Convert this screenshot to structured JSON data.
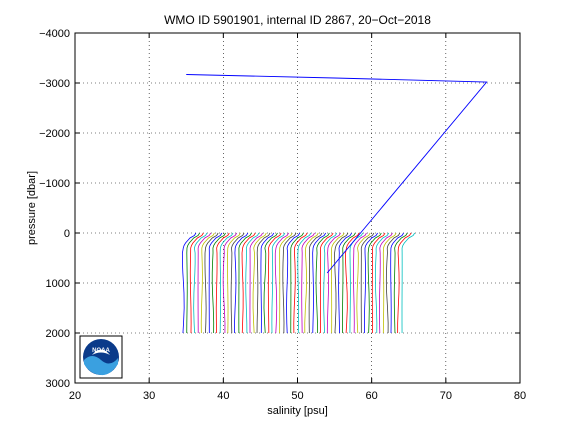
{
  "chart_data": {
    "type": "line",
    "title": "WMO ID 5901901, internal ID 2867, 20−Oct−2018",
    "xlabel": "salinity [psu]",
    "ylabel": "pressure [dbar]",
    "xlim": [
      20,
      80
    ],
    "ylim": [
      -4000,
      3000
    ],
    "y_reversed": true,
    "grid": true,
    "x_ticks": [
      20,
      30,
      40,
      50,
      60,
      70,
      80
    ],
    "x_tick_labels": [
      "20",
      "30",
      "40",
      "50",
      "60",
      "70",
      "80"
    ],
    "y_ticks": [
      -4000,
      -3000,
      -2000,
      -1000,
      0,
      1000,
      2000,
      3000
    ],
    "y_tick_labels": [
      "−4000",
      "−3000",
      "−2000",
      "−1000",
      "0",
      "1000",
      "2000",
      "3000"
    ],
    "profile_count": 60,
    "profile_offset_psu": 0.5,
    "profile_base": {
      "pressure": [
        0,
        50,
        100,
        150,
        200,
        250,
        300,
        400,
        600,
        800,
        1000,
        1200,
        1500,
        1800,
        2000
      ],
      "salinity": [
        36.3,
        36.1,
        35.5,
        35.2,
        34.9,
        34.7,
        34.6,
        34.6,
        34.6,
        34.6,
        34.6,
        34.6,
        34.6,
        34.6,
        34.6
      ]
    },
    "spike_series": {
      "pressure": [
        -3170,
        -3100,
        -3020,
        0,
        800
      ],
      "salinity": [
        35,
        55,
        75.5,
        58.5,
        54
      ]
    },
    "colors": [
      "#0000ff",
      "#008000",
      "#ff0000",
      "#00bfbf",
      "#bf00bf",
      "#bfbf00",
      "#404040"
    ],
    "logo": {
      "text": "NOAA",
      "colors": [
        "#0a3a8a",
        "#3aa0e0",
        "#ffffff"
      ]
    }
  }
}
